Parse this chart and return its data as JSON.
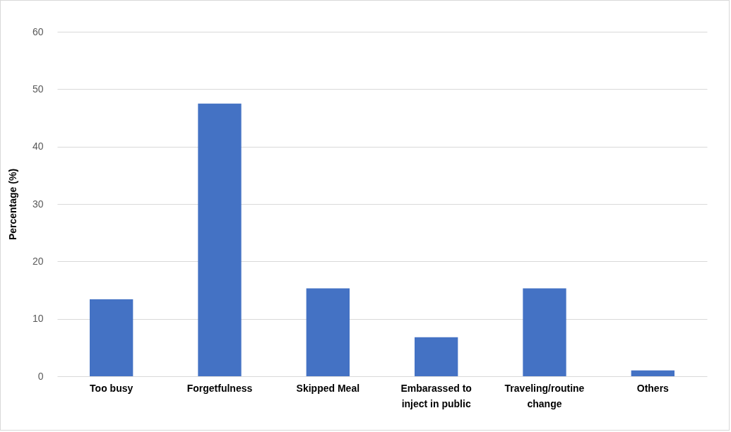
{
  "chart_data": {
    "type": "bar",
    "ylabel": "Percentage (%)",
    "categories": [
      "Too busy",
      "Forgetfulness",
      "Skipped Meal",
      "Embarassed to inject in public",
      "Traveling/routine change",
      "Others"
    ],
    "values": [
      13.4,
      47.5,
      15.3,
      6.8,
      15.3,
      1.0
    ],
    "color": "#4472c4",
    "ylim": [
      0,
      60
    ],
    "yticks": [
      0,
      10,
      20,
      30,
      40,
      50,
      60
    ],
    "grid": "y"
  }
}
